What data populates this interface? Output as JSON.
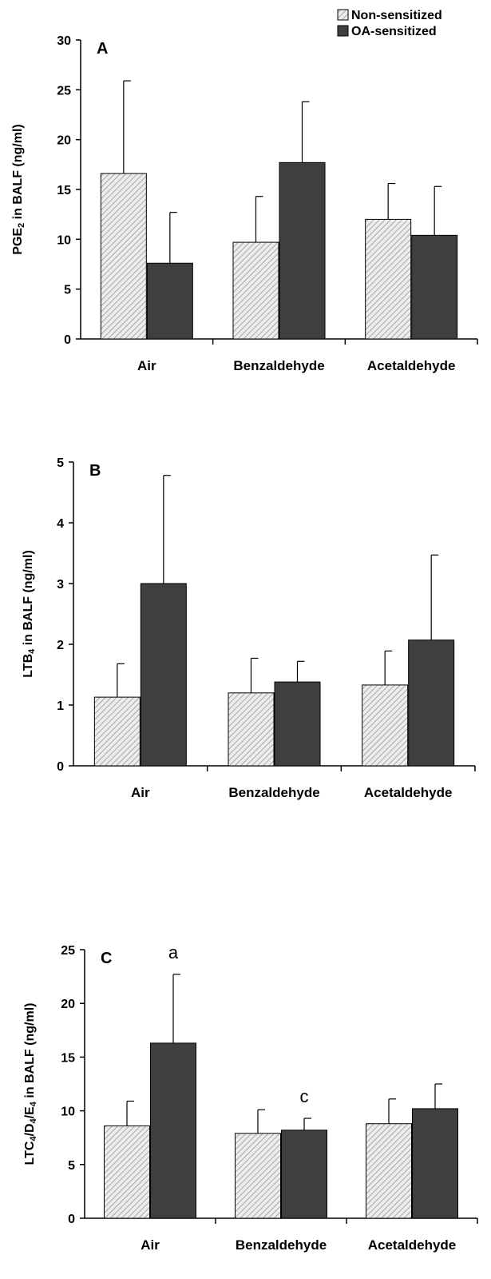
{
  "legend": [
    {
      "name": "Non-sensitized",
      "style": "hatched",
      "color": "#e4e4e4"
    },
    {
      "name": "OA-sensitized",
      "style": "solid",
      "color": "#3f3f3f"
    }
  ],
  "chart_data": [
    {
      "type": "bar",
      "panel": "A",
      "ylabel": "PGE2 in BALF (ng/ml)",
      "ylabel_parts": [
        {
          "t": "PGE"
        },
        {
          "t": "2",
          "sub": true
        },
        {
          "t": " in BALF (ng/ml)"
        }
      ],
      "categories": [
        "Air",
        "Benzaldehyde",
        "Acetaldehyde"
      ],
      "ylim": [
        0,
        30
      ],
      "yticks": [
        0,
        5,
        10,
        15,
        20,
        25,
        30
      ],
      "series": [
        {
          "name": "Non-sensitized",
          "values": [
            16.6,
            9.7,
            12.0
          ],
          "errors": [
            9.3,
            4.6,
            3.6
          ]
        },
        {
          "name": "OA-sensitized",
          "values": [
            7.6,
            17.7,
            10.4
          ],
          "errors": [
            5.1,
            6.1,
            4.9
          ]
        }
      ],
      "annotations": []
    },
    {
      "type": "bar",
      "panel": "B",
      "ylabel": "LTB4 in BALF (ng/ml)",
      "ylabel_parts": [
        {
          "t": "LTB"
        },
        {
          "t": "4",
          "sub": true
        },
        {
          "t": " in BALF (ng/ml)"
        }
      ],
      "categories": [
        "Air",
        "Benzaldehyde",
        "Acetaldehyde"
      ],
      "ylim": [
        0,
        5
      ],
      "yticks": [
        0,
        1,
        2,
        3,
        4,
        5
      ],
      "series": [
        {
          "name": "Non-sensitized",
          "values": [
            1.13,
            1.2,
            1.33
          ],
          "errors": [
            0.55,
            0.57,
            0.56
          ]
        },
        {
          "name": "OA-sensitized",
          "values": [
            3.0,
            1.38,
            2.07
          ],
          "errors": [
            1.78,
            0.34,
            1.4
          ]
        }
      ],
      "annotations": []
    },
    {
      "type": "bar",
      "panel": "C",
      "ylabel": "LTC4/D4/E4 in BALF (ng/ml)",
      "ylabel_parts": [
        {
          "t": "LTC"
        },
        {
          "t": "4",
          "sub": true
        },
        {
          "t": "/D"
        },
        {
          "t": "4",
          "sub": true
        },
        {
          "t": "/E"
        },
        {
          "t": "4",
          "sub": true
        },
        {
          "t": " in BALF (ng/ml)"
        }
      ],
      "categories": [
        "Air",
        "Benzaldehyde",
        "Acetaldehyde"
      ],
      "ylim": [
        0,
        25
      ],
      "yticks": [
        0,
        5,
        10,
        15,
        20,
        25
      ],
      "series": [
        {
          "name": "Non-sensitized",
          "values": [
            8.6,
            7.9,
            8.8
          ],
          "errors": [
            2.3,
            2.2,
            2.3
          ]
        },
        {
          "name": "OA-sensitized",
          "values": [
            16.3,
            8.2,
            10.2
          ],
          "errors": [
            6.4,
            1.1,
            2.3
          ]
        }
      ],
      "annotations": [
        {
          "text": "a",
          "category": 0,
          "series": 1
        },
        {
          "text": "c",
          "category": 1,
          "series": 1
        }
      ]
    }
  ]
}
